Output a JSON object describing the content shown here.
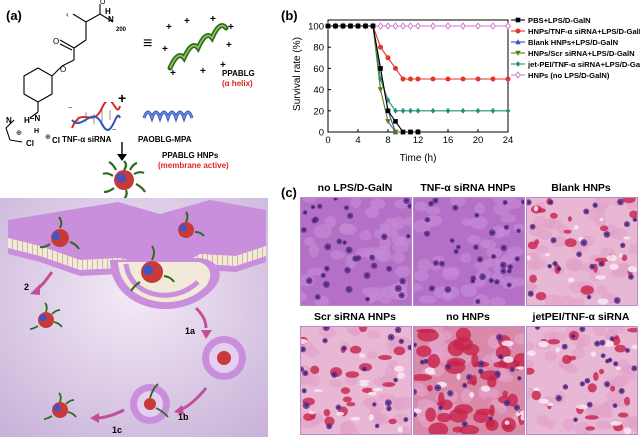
{
  "panel_a": {
    "label": "(a)",
    "equiv_symbol": "≡",
    "polymer_subscript": "200",
    "ppablg_label": "PPABLG",
    "alpha_helix_label": "(α helix)",
    "plus_sign": "+",
    "tnf_sirna_label": "TNF-α siRNA",
    "paoblg_label": "PAOBLG-MPA",
    "hnps_label": "PPABLG HNPs",
    "membrane_active_label": "(membrane active)",
    "pathway_steps": [
      "2",
      "1a",
      "1b",
      "1c"
    ]
  },
  "panel_b": {
    "label": "(b)",
    "chart_data": {
      "type": "line",
      "xlabel": "Time (h)",
      "ylabel": "Survival rate (%)",
      "xlim": [
        0,
        24
      ],
      "ylim": [
        0,
        100
      ],
      "xticks": [
        0,
        4,
        8,
        12,
        16,
        20,
        24
      ],
      "yticks": [
        0,
        20,
        40,
        60,
        80,
        100
      ],
      "grid": false,
      "legend_position": "right",
      "series": [
        {
          "name": "PBS+LPS/D-GalN",
          "color": "#000000",
          "marker": "square",
          "x": [
            0,
            1,
            2,
            3,
            4,
            5,
            6,
            7,
            8,
            9,
            10,
            11,
            12
          ],
          "y": [
            100,
            100,
            100,
            100,
            100,
            100,
            100,
            60,
            20,
            10,
            0,
            0,
            0
          ]
        },
        {
          "name": "HNPs/TNF-α siRNA+LPS/D-GalN",
          "color": "#e8332a",
          "marker": "circle",
          "x": [
            0,
            1,
            2,
            3,
            4,
            5,
            6,
            7,
            8,
            9,
            10,
            11,
            12,
            14,
            16,
            18,
            20,
            22,
            24
          ],
          "y": [
            100,
            100,
            100,
            100,
            100,
            100,
            100,
            80,
            70,
            60,
            50,
            50,
            50,
            50,
            50,
            50,
            50,
            50,
            50
          ]
        },
        {
          "name": "Blank HNPs+LPS/D-GalN",
          "color": "#3a4fb4",
          "marker": "triangle-up",
          "x": [
            0,
            1,
            2,
            3,
            4,
            5,
            6,
            7,
            8,
            9,
            10,
            11,
            12
          ],
          "y": [
            100,
            100,
            100,
            100,
            100,
            100,
            100,
            60,
            20,
            0,
            0,
            0,
            0
          ]
        },
        {
          "name": "HNPs/Scr siRNA+LPS/D-GalN",
          "color": "#5a7a1e",
          "marker": "triangle-down",
          "x": [
            0,
            1,
            2,
            3,
            4,
            5,
            6,
            7,
            8,
            9,
            10,
            11,
            12
          ],
          "y": [
            100,
            100,
            100,
            100,
            100,
            100,
            100,
            40,
            10,
            0,
            0,
            0,
            0
          ]
        },
        {
          "name": "jet-PEI/TNF-α siRNA+LPS/D-GalN",
          "color": "#1f8f7a",
          "marker": "diamond",
          "x": [
            0,
            1,
            2,
            3,
            4,
            5,
            6,
            7,
            8,
            9,
            10,
            11,
            12,
            14,
            16,
            18,
            20,
            22,
            24
          ],
          "y": [
            100,
            100,
            100,
            100,
            100,
            100,
            100,
            50,
            30,
            20,
            20,
            20,
            20,
            20,
            20,
            20,
            20,
            20,
            20
          ]
        },
        {
          "name": "HNPs (no LPS/D-GalN)",
          "color": "#cf78d4",
          "marker": "diamond-open",
          "x": [
            0,
            1,
            2,
            3,
            4,
            5,
            6,
            7,
            8,
            9,
            10,
            11,
            12,
            14,
            16,
            18,
            20,
            22,
            24
          ],
          "y": [
            100,
            100,
            100,
            100,
            100,
            100,
            100,
            100,
            100,
            100,
            100,
            100,
            100,
            100,
            100,
            100,
            100,
            100,
            100
          ]
        }
      ]
    }
  },
  "panel_c": {
    "label": "(c)",
    "tiles": [
      {
        "caption": "no LPS/D-GalN"
      },
      {
        "caption": "TNF-α siRNA HNPs"
      },
      {
        "caption": "Blank HNPs"
      },
      {
        "caption": "Scr siRNA HNPs"
      },
      {
        "caption": "no HNPs"
      },
      {
        "caption": "jetPEI/TNF-α siRNA"
      }
    ]
  },
  "colors": {
    "membrane_purple": "#c98fdc",
    "membrane_bg": "#d9c7e6",
    "helix_green": "#3d7a2a",
    "accent_red": "#e0231f",
    "arrow_pink": "#c0509a",
    "tissue_pink": "#e7b9d8",
    "tissue_purple": "#b573c8",
    "blood_red": "#c8224a"
  }
}
